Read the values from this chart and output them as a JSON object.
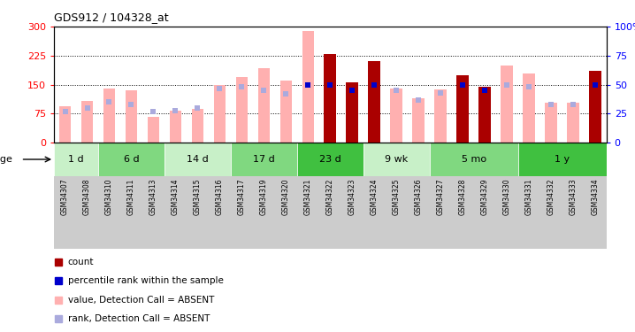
{
  "title": "GDS912 / 104328_at",
  "samples": [
    "GSM34307",
    "GSM34308",
    "GSM34310",
    "GSM34311",
    "GSM34313",
    "GSM34314",
    "GSM34315",
    "GSM34316",
    "GSM34317",
    "GSM34319",
    "GSM34320",
    "GSM34321",
    "GSM34322",
    "GSM34323",
    "GSM34324",
    "GSM34325",
    "GSM34326",
    "GSM34327",
    "GSM34328",
    "GSM34329",
    "GSM34330",
    "GSM34331",
    "GSM34332",
    "GSM34333",
    "GSM34334"
  ],
  "value_absent": [
    95,
    108,
    140,
    135,
    68,
    83,
    88,
    150,
    170,
    193,
    160,
    288,
    null,
    null,
    null,
    140,
    115,
    138,
    null,
    null,
    200,
    180,
    103,
    103,
    null
  ],
  "count": [
    null,
    null,
    null,
    null,
    null,
    null,
    null,
    null,
    null,
    null,
    null,
    null,
    230,
    155,
    210,
    null,
    null,
    null,
    175,
    145,
    null,
    null,
    null,
    null,
    185
  ],
  "rank_absent_pct": [
    27,
    30,
    35,
    33,
    27,
    28,
    30,
    47,
    48,
    45,
    42,
    50,
    null,
    null,
    null,
    45,
    37,
    43,
    null,
    null,
    50,
    48,
    33,
    33,
    null
  ],
  "percentile_rank_pct": [
    null,
    null,
    null,
    null,
    null,
    null,
    null,
    null,
    null,
    null,
    null,
    50,
    50,
    45,
    50,
    null,
    null,
    null,
    50,
    45,
    null,
    null,
    null,
    null,
    50
  ],
  "age_groups": [
    {
      "label": "1 d",
      "start": 0,
      "end": 2,
      "color": "#c8f0c8"
    },
    {
      "label": "6 d",
      "start": 2,
      "end": 5,
      "color": "#80d880"
    },
    {
      "label": "14 d",
      "start": 5,
      "end": 8,
      "color": "#c8f0c8"
    },
    {
      "label": "17 d",
      "start": 8,
      "end": 11,
      "color": "#80d880"
    },
    {
      "label": "23 d",
      "start": 11,
      "end": 14,
      "color": "#40c040"
    },
    {
      "label": "9 wk",
      "start": 14,
      "end": 17,
      "color": "#c8f0c8"
    },
    {
      "label": "5 mo",
      "start": 17,
      "end": 21,
      "color": "#80d880"
    },
    {
      "label": "1 y",
      "start": 21,
      "end": 25,
      "color": "#40c040"
    }
  ],
  "ylim_left": [
    0,
    300
  ],
  "ylim_right": [
    0,
    100
  ],
  "yticks_left": [
    0,
    75,
    150,
    225,
    300
  ],
  "yticks_right": [
    0,
    25,
    50,
    75,
    100
  ],
  "color_count": "#aa0000",
  "color_value_absent": "#ffb0b0",
  "color_rank_absent": "#aaaadd",
  "color_percentile": "#0000cc",
  "legend_items": [
    {
      "color": "#aa0000",
      "label": "count"
    },
    {
      "color": "#0000cc",
      "label": "percentile rank within the sample"
    },
    {
      "color": "#ffb0b0",
      "label": "value, Detection Call = ABSENT"
    },
    {
      "color": "#aaaadd",
      "label": "rank, Detection Call = ABSENT"
    }
  ]
}
